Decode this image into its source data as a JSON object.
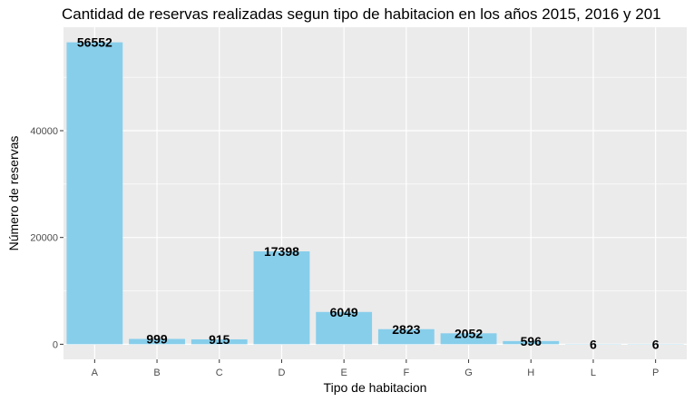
{
  "chart_data": {
    "type": "bar",
    "title": "Cantidad de reservas realizadas segun tipo de habitacion en los años 2015, 2016 y 201",
    "xlabel": "Tipo de habitacion",
    "ylabel": "Número de reservas",
    "categories": [
      "A",
      "B",
      "C",
      "D",
      "E",
      "F",
      "G",
      "H",
      "L",
      "P"
    ],
    "values": [
      56552,
      999,
      915,
      17398,
      6049,
      2823,
      2052,
      596,
      6,
      6
    ],
    "value_labels": [
      "56552",
      "999",
      "915",
      "17398",
      "6049",
      "2823",
      "2052",
      "596",
      "6",
      "6"
    ],
    "yticks": [
      0,
      20000,
      40000
    ],
    "ytick_labels": [
      "0",
      "20000",
      "40000"
    ],
    "ylim": [
      -2828,
      59380
    ],
    "grid": true,
    "bar_color": "#87CEEB",
    "panel_background": "#EBEBEB",
    "grid_color": "#FFFFFF"
  }
}
